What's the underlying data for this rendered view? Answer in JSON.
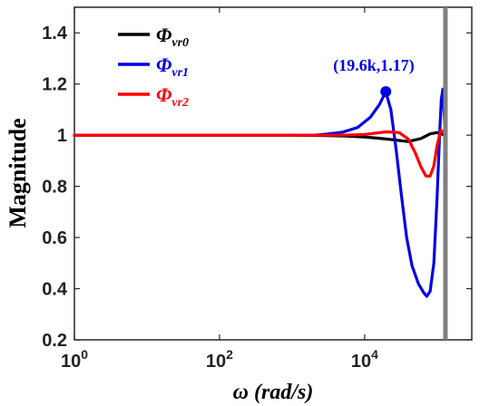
{
  "chart_data": {
    "type": "line",
    "xlabel": "ω (rad/s)",
    "ylabel": "Magnitude",
    "xscale": "log",
    "xlim": [
      1,
      300000
    ],
    "ylim": [
      0.2,
      1.5
    ],
    "xticks": [
      {
        "value": 1,
        "base": "10",
        "exp": "0"
      },
      {
        "value": 100,
        "base": "10",
        "exp": "2"
      },
      {
        "value": 10000,
        "base": "10",
        "exp": "4"
      }
    ],
    "yticks": [
      0.2,
      0.4,
      0.6,
      0.8,
      1,
      1.2,
      1.4
    ],
    "ytick_labels": [
      "0.2",
      "0.4",
      "0.6",
      "0.8",
      "1",
      "1.2",
      "1.4"
    ],
    "grid": false,
    "legend_position": "top-left",
    "series": [
      {
        "name": "Φvr0",
        "symbol": "Φ",
        "subscript": "vr0",
        "color": "#000000",
        "x": [
          1,
          1000,
          2000,
          5000,
          10000,
          20000,
          40000,
          60000,
          80000,
          100000,
          130000
        ],
        "y": [
          1.0,
          1.0,
          0.999,
          0.997,
          0.993,
          0.985,
          0.975,
          0.987,
          1.005,
          1.01,
          1.0
        ]
      },
      {
        "name": "Φvr1",
        "symbol": "Φ",
        "subscript": "vr1",
        "color": "#0000e6",
        "x": [
          1,
          2000,
          3000,
          5000,
          8000,
          12000,
          16000,
          19600,
          23000,
          27000,
          32000,
          38000,
          45000,
          55000,
          65000,
          72000,
          80000,
          90000,
          100000,
          108000,
          114000,
          120000,
          128000
        ],
        "y": [
          1.0,
          1.0,
          1.004,
          1.012,
          1.03,
          1.07,
          1.12,
          1.17,
          1.1,
          0.95,
          0.77,
          0.6,
          0.49,
          0.42,
          0.385,
          0.37,
          0.39,
          0.5,
          0.76,
          1.0,
          1.14,
          1.18,
          1.02
        ]
      },
      {
        "name": "Φvr2",
        "symbol": "Φ",
        "subscript": "vr2",
        "color": "#ff0000",
        "x": [
          1,
          5000,
          10000,
          20000,
          30000,
          40000,
          50000,
          60000,
          70000,
          80000,
          90000,
          100000,
          112000,
          122000,
          130000
        ],
        "y": [
          1.0,
          1.0,
          1.003,
          1.013,
          1.01,
          0.985,
          0.93,
          0.875,
          0.84,
          0.84,
          0.88,
          0.96,
          1.02,
          1.01,
          1.0
        ]
      }
    ],
    "marker": {
      "x": 19600,
      "y": 1.17,
      "color": "#0000e6"
    },
    "annotation": {
      "text": "(19.6k,1.17)",
      "color": "#0000e6"
    },
    "vertical_line": {
      "x": 130000,
      "color": "#808080"
    }
  }
}
